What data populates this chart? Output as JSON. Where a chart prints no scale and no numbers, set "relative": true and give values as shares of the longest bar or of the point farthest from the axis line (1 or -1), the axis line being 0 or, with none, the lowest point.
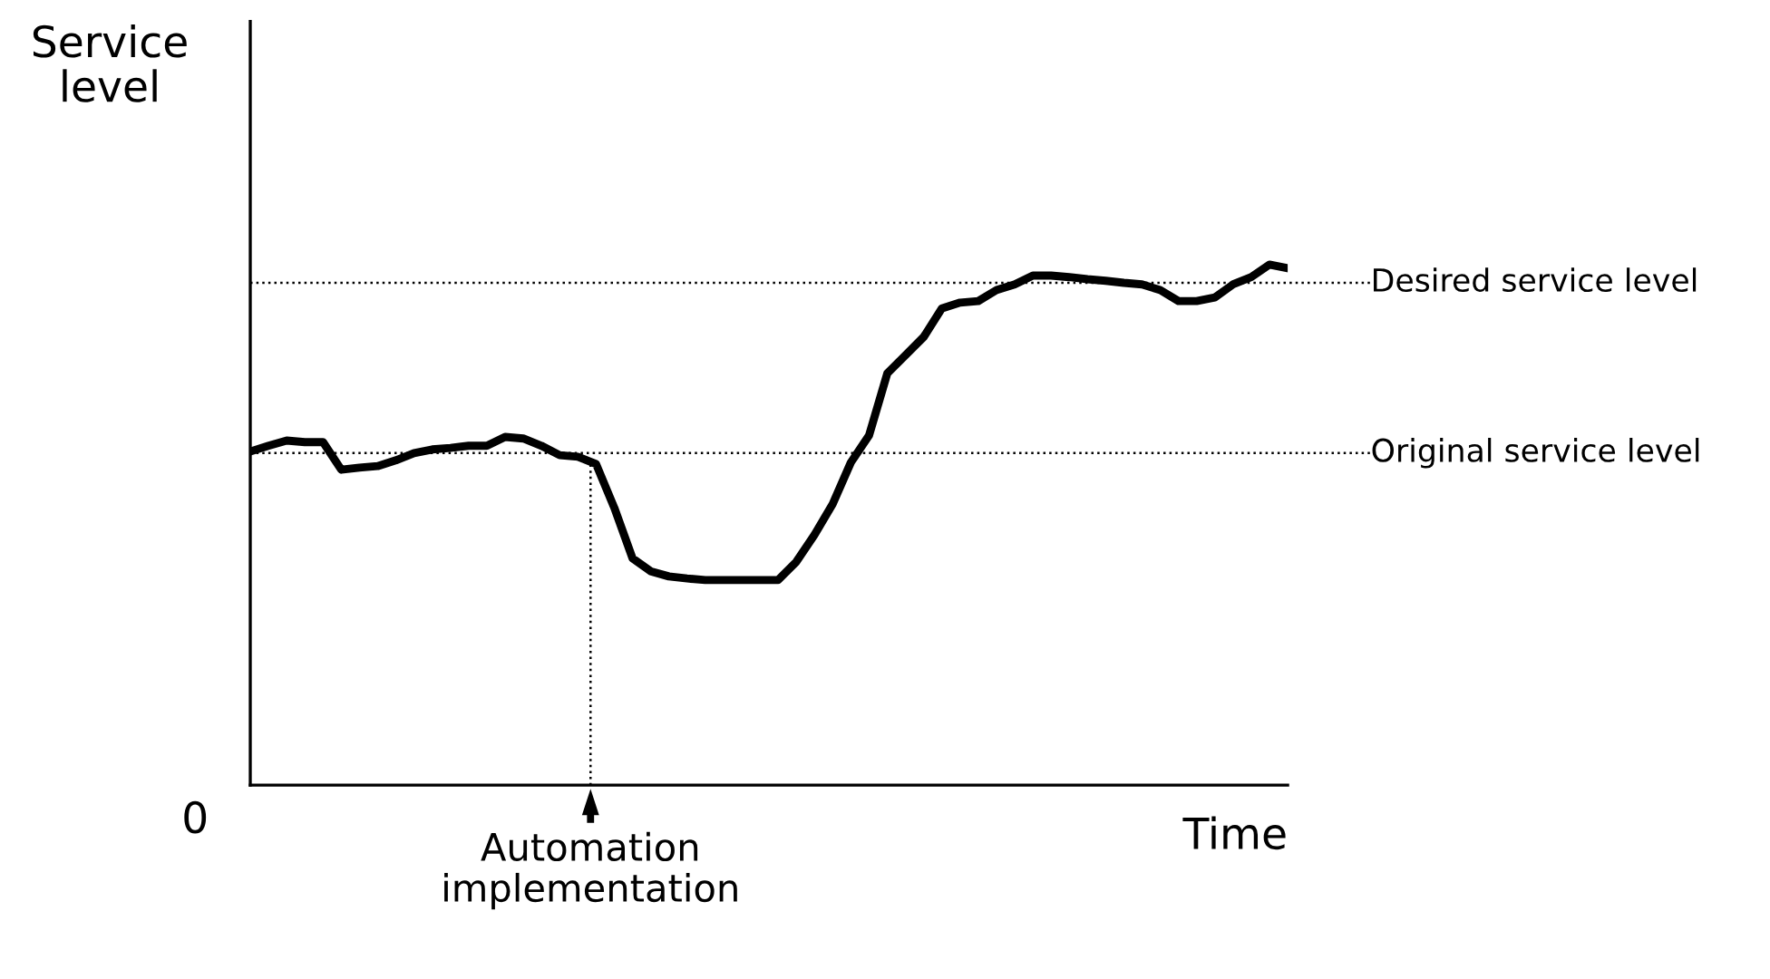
{
  "chart_data": {
    "type": "line",
    "relative": true,
    "ylabel": "Service\nlevel",
    "xlabel": "Time",
    "categories": [
      null,
      null,
      null,
      null,
      null,
      null,
      null,
      null,
      null,
      null,
      null,
      null,
      null,
      null,
      null,
      null,
      null,
      null,
      null,
      null,
      null,
      null,
      null,
      null,
      null,
      null,
      null,
      null,
      null,
      null,
      null,
      null,
      null,
      null,
      null,
      null,
      null,
      null,
      null,
      null,
      null,
      null,
      null,
      null,
      null,
      null,
      null,
      null,
      null,
      null,
      null,
      null,
      null,
      null,
      null,
      null,
      null,
      null
    ],
    "series": [
      {
        "color": "#000000",
        "values": [
          0.641,
          0.652,
          0.662,
          0.659,
          0.659,
          0.606,
          0.61,
          0.613,
          0.624,
          0.638,
          0.645,
          0.648,
          0.652,
          0.652,
          0.669,
          0.666,
          0.652,
          0.634,
          0.631,
          0.617,
          0.533,
          0.436,
          0.411,
          0.401,
          0.397,
          0.394,
          0.394,
          0.394,
          0.394,
          0.394,
          0.429,
          0.481,
          0.54,
          0.62,
          0.672,
          0.791,
          0.826,
          0.861,
          0.916,
          0.927,
          0.93,
          0.951,
          0.962,
          0.979,
          0.979,
          0.976,
          0.972,
          0.969,
          0.965,
          0.962,
          0.951,
          0.93,
          0.93,
          0.937,
          0.962,
          0.976,
          1.0,
          0.993
        ]
      }
    ],
    "ref_lines": [
      {
        "axis": "y",
        "value": 0.965,
        "label": "Desired service level",
        "line_style": "dotted",
        "color": "#000000"
      },
      {
        "axis": "y",
        "value": 0.638,
        "label": "Original service level",
        "line_style": "dotted",
        "color": "#000000"
      }
    ],
    "annotations": [
      "0",
      "Automation\nimplementation"
    ],
    "marker": "none",
    "line_style": "solid",
    "legend": false
  }
}
